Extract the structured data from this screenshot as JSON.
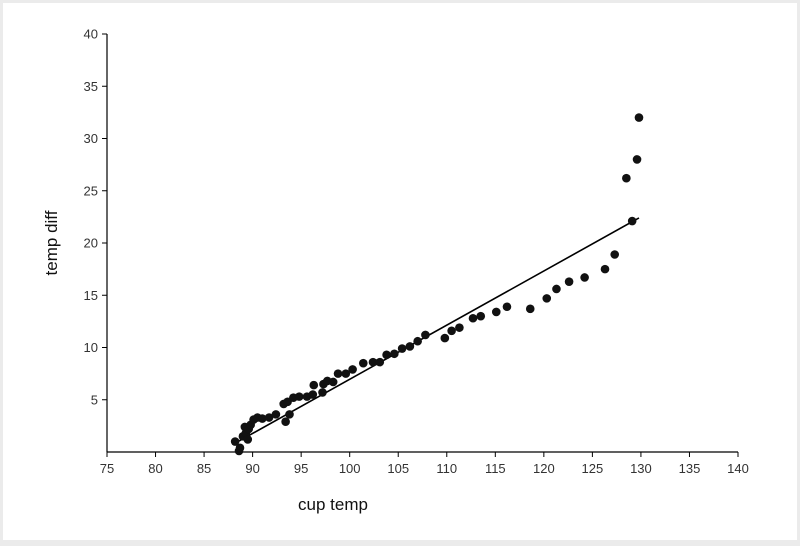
{
  "chart_data": {
    "type": "scatter",
    "title": "",
    "xlabel": "cup temp",
    "ylabel": "temp diff",
    "xlim": [
      75,
      140
    ],
    "ylim": [
      0,
      40
    ],
    "xticks": [
      75,
      80,
      85,
      90,
      95,
      100,
      105,
      110,
      115,
      120,
      125,
      130,
      135,
      140
    ],
    "yticks": [
      5,
      10,
      15,
      20,
      25,
      30,
      35,
      40
    ],
    "grid": false,
    "legend": "none",
    "point_color": "#111111",
    "line_color": "#000000",
    "series": [
      {
        "points": [
          [
            88.2,
            1.0
          ],
          [
            88.6,
            0.1
          ],
          [
            88.7,
            0.4
          ],
          [
            89.0,
            1.5
          ],
          [
            89.2,
            2.4
          ],
          [
            89.3,
            1.8
          ],
          [
            89.5,
            1.2
          ],
          [
            89.6,
            2.2
          ],
          [
            89.8,
            2.6
          ],
          [
            90.1,
            3.1
          ],
          [
            90.5,
            3.3
          ],
          [
            91.0,
            3.2
          ],
          [
            91.7,
            3.3
          ],
          [
            92.4,
            3.6
          ],
          [
            93.2,
            4.6
          ],
          [
            93.4,
            2.9
          ],
          [
            93.6,
            4.8
          ],
          [
            93.8,
            3.6
          ],
          [
            94.2,
            5.2
          ],
          [
            94.8,
            5.3
          ],
          [
            95.6,
            5.3
          ],
          [
            96.2,
            5.5
          ],
          [
            96.3,
            6.4
          ],
          [
            97.2,
            5.7
          ],
          [
            97.3,
            6.5
          ],
          [
            97.7,
            6.8
          ],
          [
            98.3,
            6.7
          ],
          [
            98.8,
            7.5
          ],
          [
            99.6,
            7.5
          ],
          [
            100.3,
            7.9
          ],
          [
            101.4,
            8.5
          ],
          [
            102.4,
            8.6
          ],
          [
            103.1,
            8.6
          ],
          [
            103.8,
            9.3
          ],
          [
            104.6,
            9.4
          ],
          [
            105.4,
            9.9
          ],
          [
            106.2,
            10.1
          ],
          [
            107.0,
            10.6
          ],
          [
            107.8,
            11.2
          ],
          [
            109.8,
            10.9
          ],
          [
            110.5,
            11.6
          ],
          [
            111.3,
            11.9
          ],
          [
            112.7,
            12.8
          ],
          [
            113.5,
            13.0
          ],
          [
            115.1,
            13.4
          ],
          [
            116.2,
            13.9
          ],
          [
            118.6,
            13.7
          ],
          [
            120.3,
            14.7
          ],
          [
            121.3,
            15.6
          ],
          [
            122.6,
            16.3
          ],
          [
            124.2,
            16.7
          ],
          [
            126.3,
            17.5
          ],
          [
            127.3,
            18.9
          ],
          [
            128.5,
            26.2
          ],
          [
            129.1,
            22.1
          ],
          [
            129.6,
            28.0
          ],
          [
            129.8,
            32.0
          ]
        ]
      }
    ],
    "fit_line": {
      "x": [
        88.5,
        129.8
      ],
      "y": [
        1.0,
        22.4
      ]
    }
  }
}
